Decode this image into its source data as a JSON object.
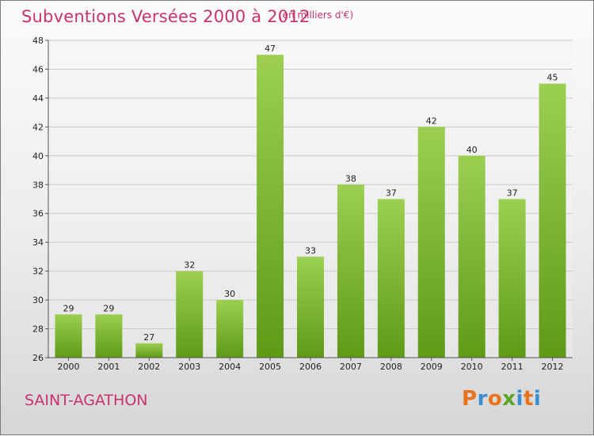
{
  "header": {
    "title": "Subventions Versées 2000 à 2012",
    "subtitle": "(en milliers d'€)"
  },
  "footer": {
    "location": "SAINT-AGATHON",
    "brand": "Proxiti"
  },
  "colors": {
    "title": "#c8336f",
    "bar_top": "#9ccf52",
    "bar_bottom": "#5f9a17",
    "brand_letters": [
      "#e8731a",
      "#3a8fd1",
      "#e8731a",
      "#5aa52a",
      "#3a8fd1",
      "#e8731a",
      "#3a8fd1"
    ]
  },
  "chart_data": {
    "type": "bar",
    "title": "Subventions Versées 2000 à 2012",
    "subtitle": "(en milliers d'€)",
    "categories": [
      "2000",
      "2001",
      "2002",
      "2003",
      "2004",
      "2005",
      "2006",
      "2007",
      "2008",
      "2009",
      "2010",
      "2011",
      "2012"
    ],
    "values": [
      29,
      29,
      27,
      32,
      30,
      47,
      33,
      38,
      37,
      42,
      40,
      37,
      45
    ],
    "ylim": [
      26,
      48
    ],
    "yticks": [
      26,
      28,
      30,
      32,
      34,
      36,
      38,
      40,
      42,
      44,
      46,
      48
    ],
    "grid": true,
    "data_labels": true,
    "legend": false
  }
}
